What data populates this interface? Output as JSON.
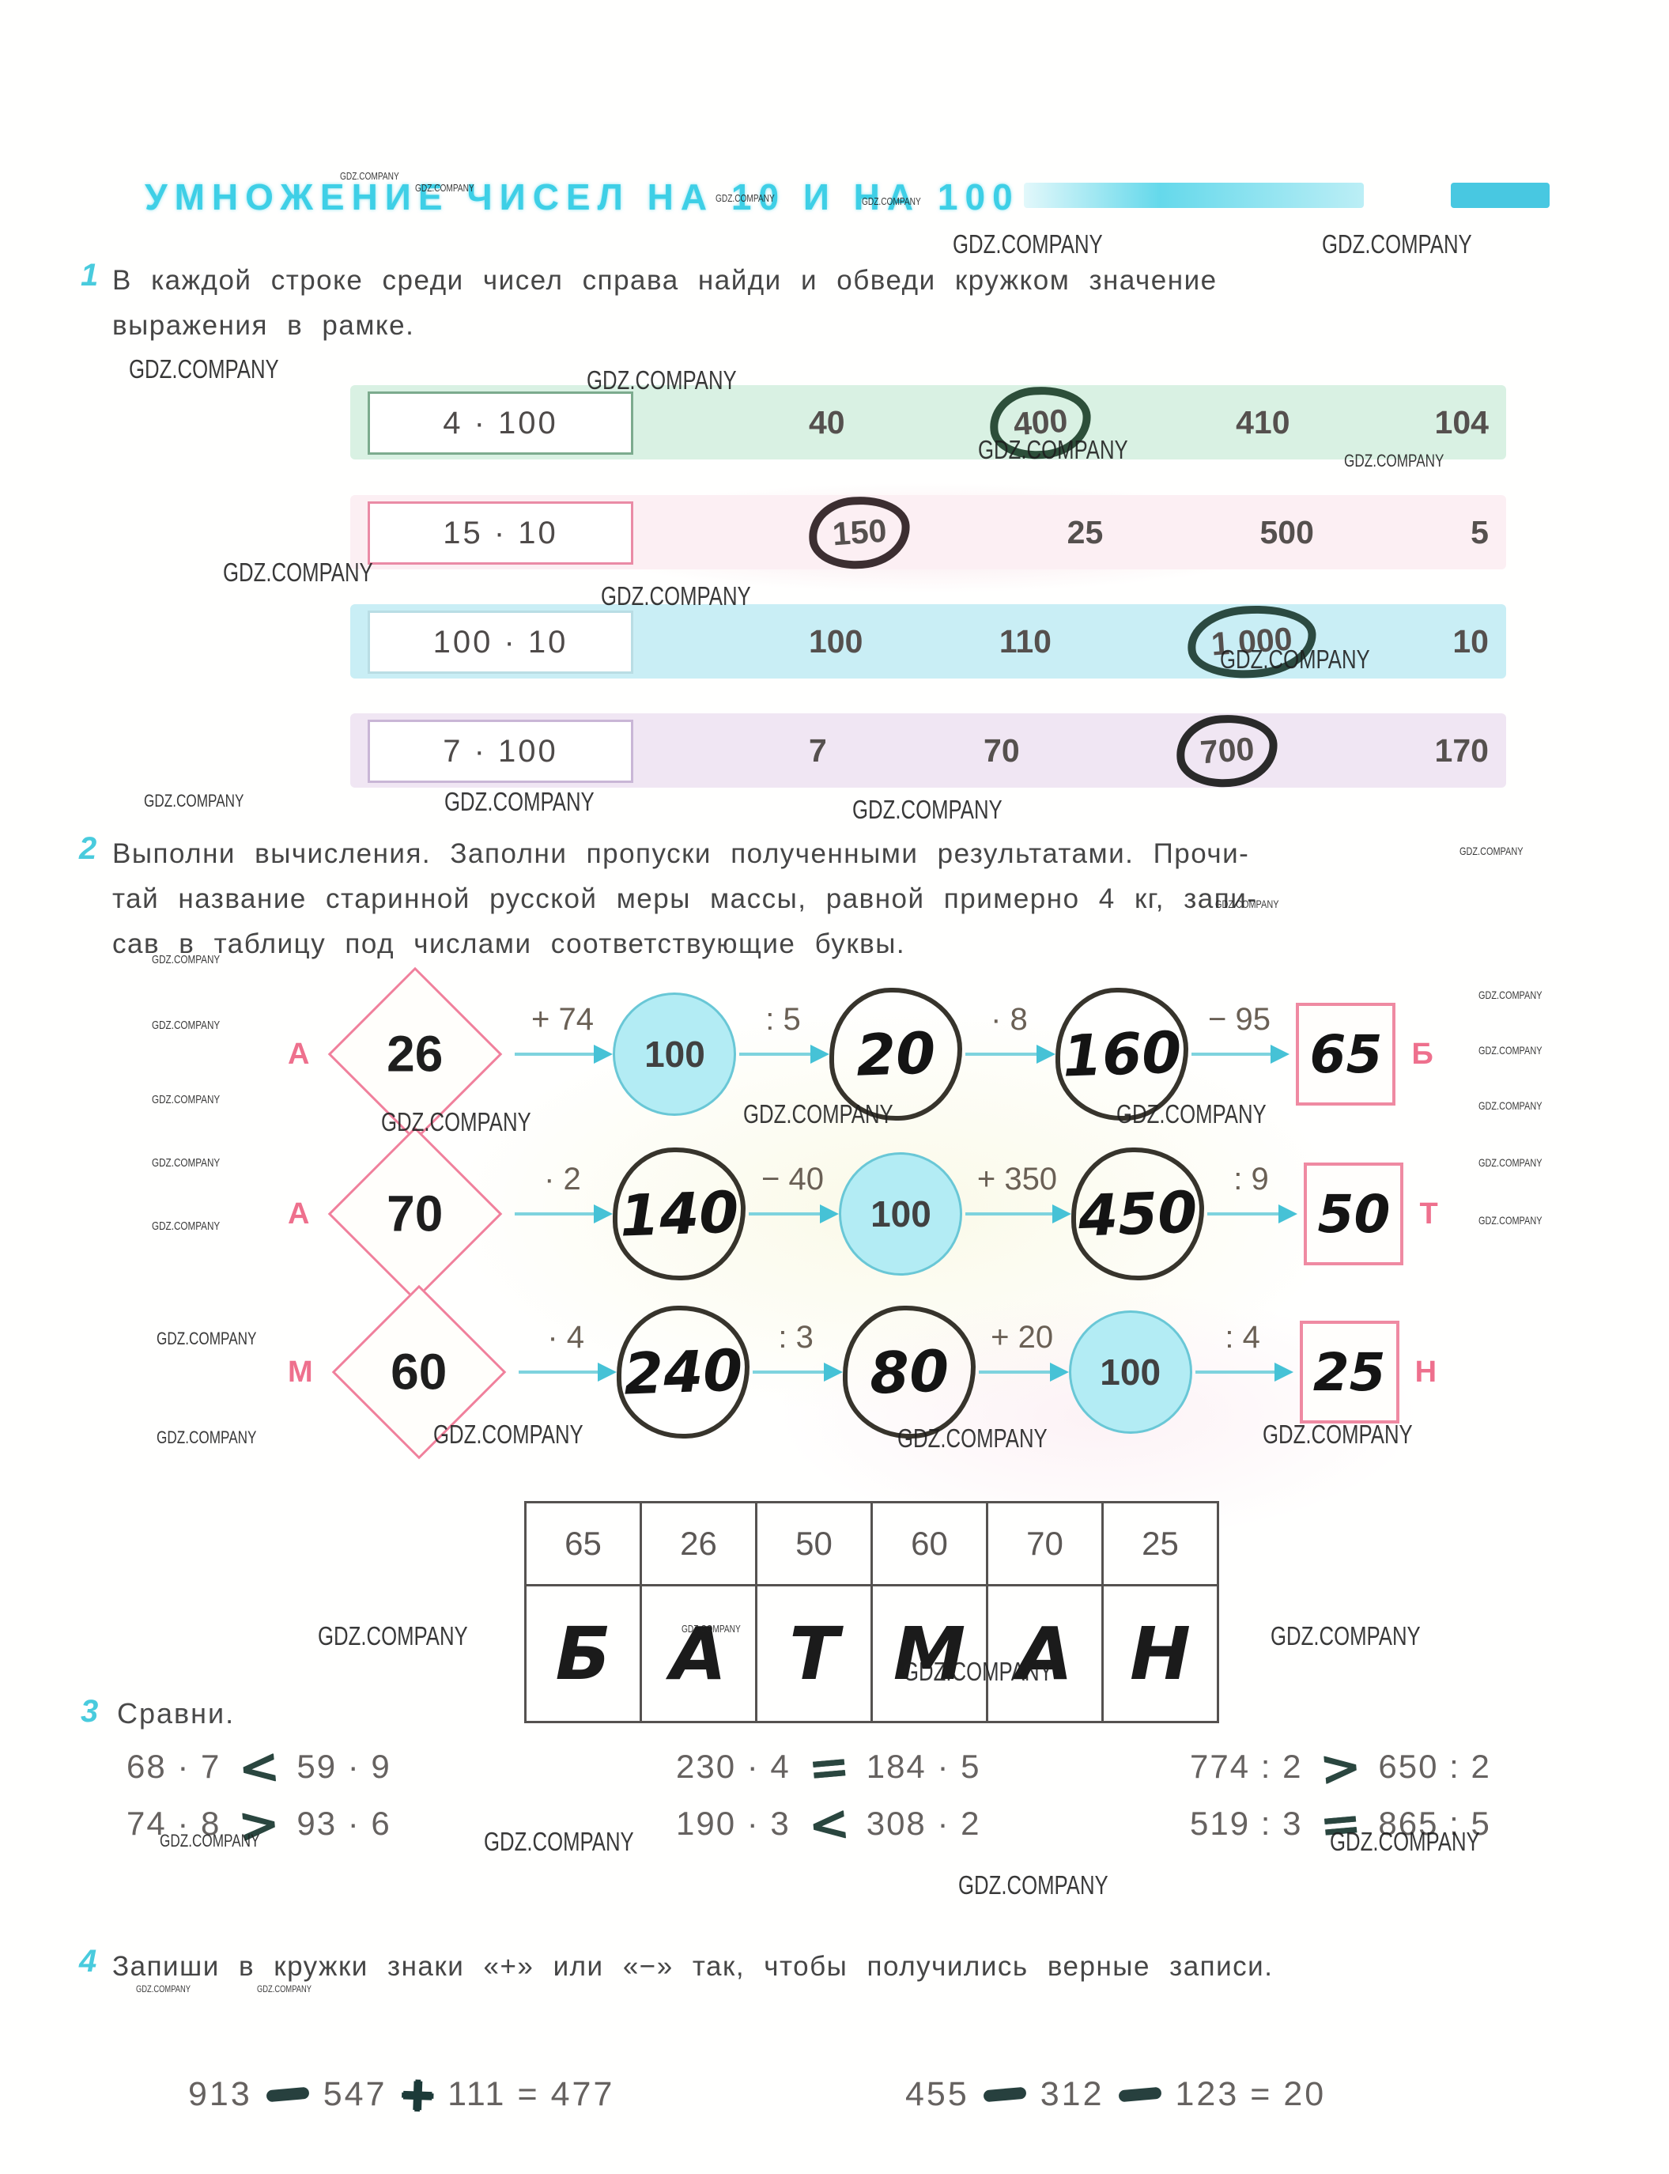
{
  "page": {
    "title": "УМНОЖЕНИЕ ЧИСЕЛ НА 10 И НА 100"
  },
  "watermark_text": "GDZ.COMPANY",
  "watermarks": [
    [
      430,
      215,
      13
    ],
    [
      525,
      230,
      13
    ],
    [
      905,
      243,
      13
    ],
    [
      1090,
      247,
      13
    ],
    [
      1205,
      290,
      33
    ],
    [
      1672,
      290,
      33
    ],
    [
      163,
      448,
      33
    ],
    [
      742,
      462,
      33
    ],
    [
      1237,
      550,
      33
    ],
    [
      1700,
      570,
      22
    ],
    [
      282,
      705,
      33
    ],
    [
      760,
      735,
      33
    ],
    [
      1543,
      815,
      33
    ],
    [
      182,
      1000,
      22
    ],
    [
      562,
      995,
      33
    ],
    [
      1078,
      1005,
      33
    ],
    [
      1846,
      1068,
      14
    ],
    [
      1537,
      1135,
      14
    ],
    [
      192,
      1205,
      15
    ],
    [
      1870,
      1250,
      14
    ],
    [
      192,
      1288,
      15
    ],
    [
      1870,
      1320,
      14
    ],
    [
      192,
      1382,
      15
    ],
    [
      1870,
      1390,
      14
    ],
    [
      482,
      1400,
      33
    ],
    [
      940,
      1390,
      33
    ],
    [
      1412,
      1390,
      33
    ],
    [
      192,
      1462,
      15
    ],
    [
      1870,
      1462,
      14
    ],
    [
      192,
      1542,
      15
    ],
    [
      1870,
      1535,
      14
    ],
    [
      198,
      1680,
      22
    ],
    [
      198,
      1805,
      22
    ],
    [
      548,
      1795,
      33
    ],
    [
      1135,
      1800,
      33
    ],
    [
      1597,
      1795,
      33
    ],
    [
      862,
      2052,
      13
    ],
    [
      402,
      2050,
      33
    ],
    [
      1607,
      2050,
      33
    ],
    [
      1142,
      2095,
      33
    ],
    [
      202,
      2315,
      22
    ],
    [
      612,
      2310,
      33
    ],
    [
      1682,
      2310,
      33
    ],
    [
      1212,
      2365,
      33
    ],
    [
      172,
      2508,
      12
    ],
    [
      325,
      2508,
      12
    ]
  ],
  "ex1": {
    "number": "1",
    "line1": "В каждой строке среди чисел справа найди и обведи кружком значение",
    "line2": "выражения в рамке.",
    "rows": [
      {
        "expr": "4 · 100",
        "options": [
          "40",
          "400",
          "410",
          "104"
        ]
      },
      {
        "expr": "15 · 10",
        "options": [
          "150",
          "25",
          "500",
          "5"
        ]
      },
      {
        "expr": "100 · 10",
        "options": [
          "100",
          "110",
          "1 000",
          "10"
        ]
      },
      {
        "expr": "7 · 100",
        "options": [
          "7",
          "70",
          "700",
          "170"
        ]
      }
    ]
  },
  "ex2": {
    "number": "2",
    "line1": "Выполни вычисления. Заполни пропуски полученными результатами. Прочи-",
    "line2": "тай название старинной русской меры массы, равной примерно 4 кг, запи-",
    "line3": "сав в таблицу под числами соответствующие буквы.",
    "chains": [
      {
        "start_label": "А",
        "start": "26",
        "ops": [
          "+ 74",
          ": 5",
          "· 8",
          "− 95"
        ],
        "mids": [
          "100",
          "20",
          "160"
        ],
        "end": "65",
        "end_label": "Б"
      },
      {
        "start_label": "А",
        "start": "70",
        "ops": [
          "· 2",
          "− 40",
          "+ 350",
          ": 9"
        ],
        "mids": [
          "140",
          "100",
          "450"
        ],
        "end": "50",
        "end_label": "Т"
      },
      {
        "start_label": "М",
        "start": "60",
        "ops": [
          "· 4",
          ": 3",
          "+ 20",
          ": 4"
        ],
        "mids": [
          "240",
          "80",
          "100"
        ],
        "end": "25",
        "end_label": "Н"
      }
    ],
    "table": {
      "numbers": [
        "65",
        "26",
        "50",
        "60",
        "70",
        "25"
      ],
      "letters": [
        "Б",
        "А",
        "Т",
        "М",
        "А",
        "Н"
      ]
    }
  },
  "ex3": {
    "number": "3",
    "title": "Сравни.",
    "comparisons": [
      {
        "left": "68 · 7",
        "sign": "<",
        "right": "59 · 9"
      },
      {
        "left": "74 · 8",
        "sign": ">",
        "right": "93 · 6"
      },
      {
        "left": "230 · 4",
        "sign": "=",
        "right": "184 · 5"
      },
      {
        "left": "190 · 3",
        "sign": "<",
        "right": "308 · 2"
      },
      {
        "left": "774 : 2",
        "sign": ">",
        "right": "650 : 2"
      },
      {
        "left": "519 : 3",
        "sign": "=",
        "right": "865 : 5"
      }
    ]
  },
  "ex4": {
    "number": "4",
    "text": "Запиши в кружки знаки «+» или «−» так, чтобы получились верные записи.",
    "equations": [
      {
        "a": "913",
        "sign1": "−",
        "b": "547",
        "sign2": "+",
        "c": "111",
        "equals": "=",
        "result": "477"
      },
      {
        "a": "455",
        "sign1": "−",
        "b": "312",
        "sign2": "−",
        "c": "123",
        "equals": "=",
        "result": "20"
      }
    ]
  },
  "colors": {
    "accent_cyan": "#3ecfe6",
    "pink": "#ee708d",
    "given_fill": "#b3ecf4",
    "arrow": "#5fc9d8",
    "ink": "#141414",
    "print_gray": "#55504e",
    "row1_band": "#d9f1e3",
    "row2_band": "#fceff3",
    "row3_band": "#c9eef5",
    "row4_band": "#f0e6f3"
  }
}
